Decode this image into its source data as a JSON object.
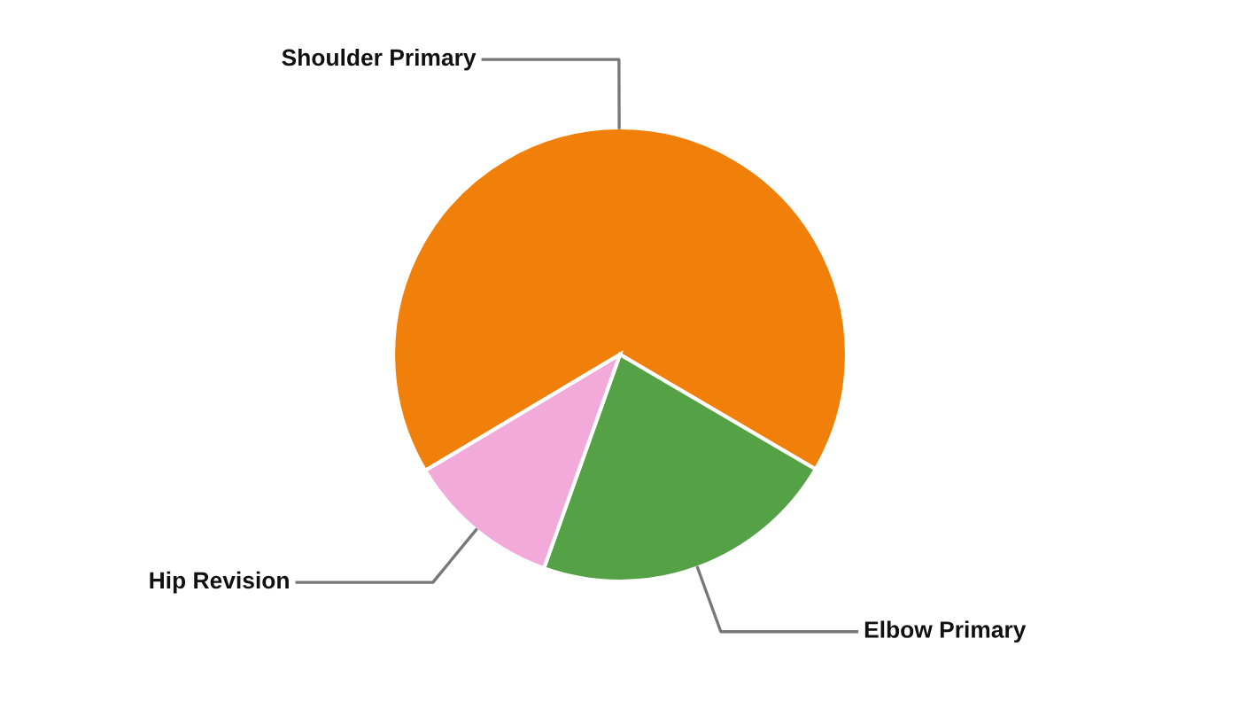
{
  "chart_data": {
    "type": "pie",
    "categories": [
      "Shoulder Primary",
      "Elbow Primary",
      "Hip Revision"
    ],
    "values": [
      67,
      22,
      11
    ],
    "colors": [
      "#f0800a",
      "#55a146",
      "#f1aad9"
    ],
    "legend": false
  }
}
